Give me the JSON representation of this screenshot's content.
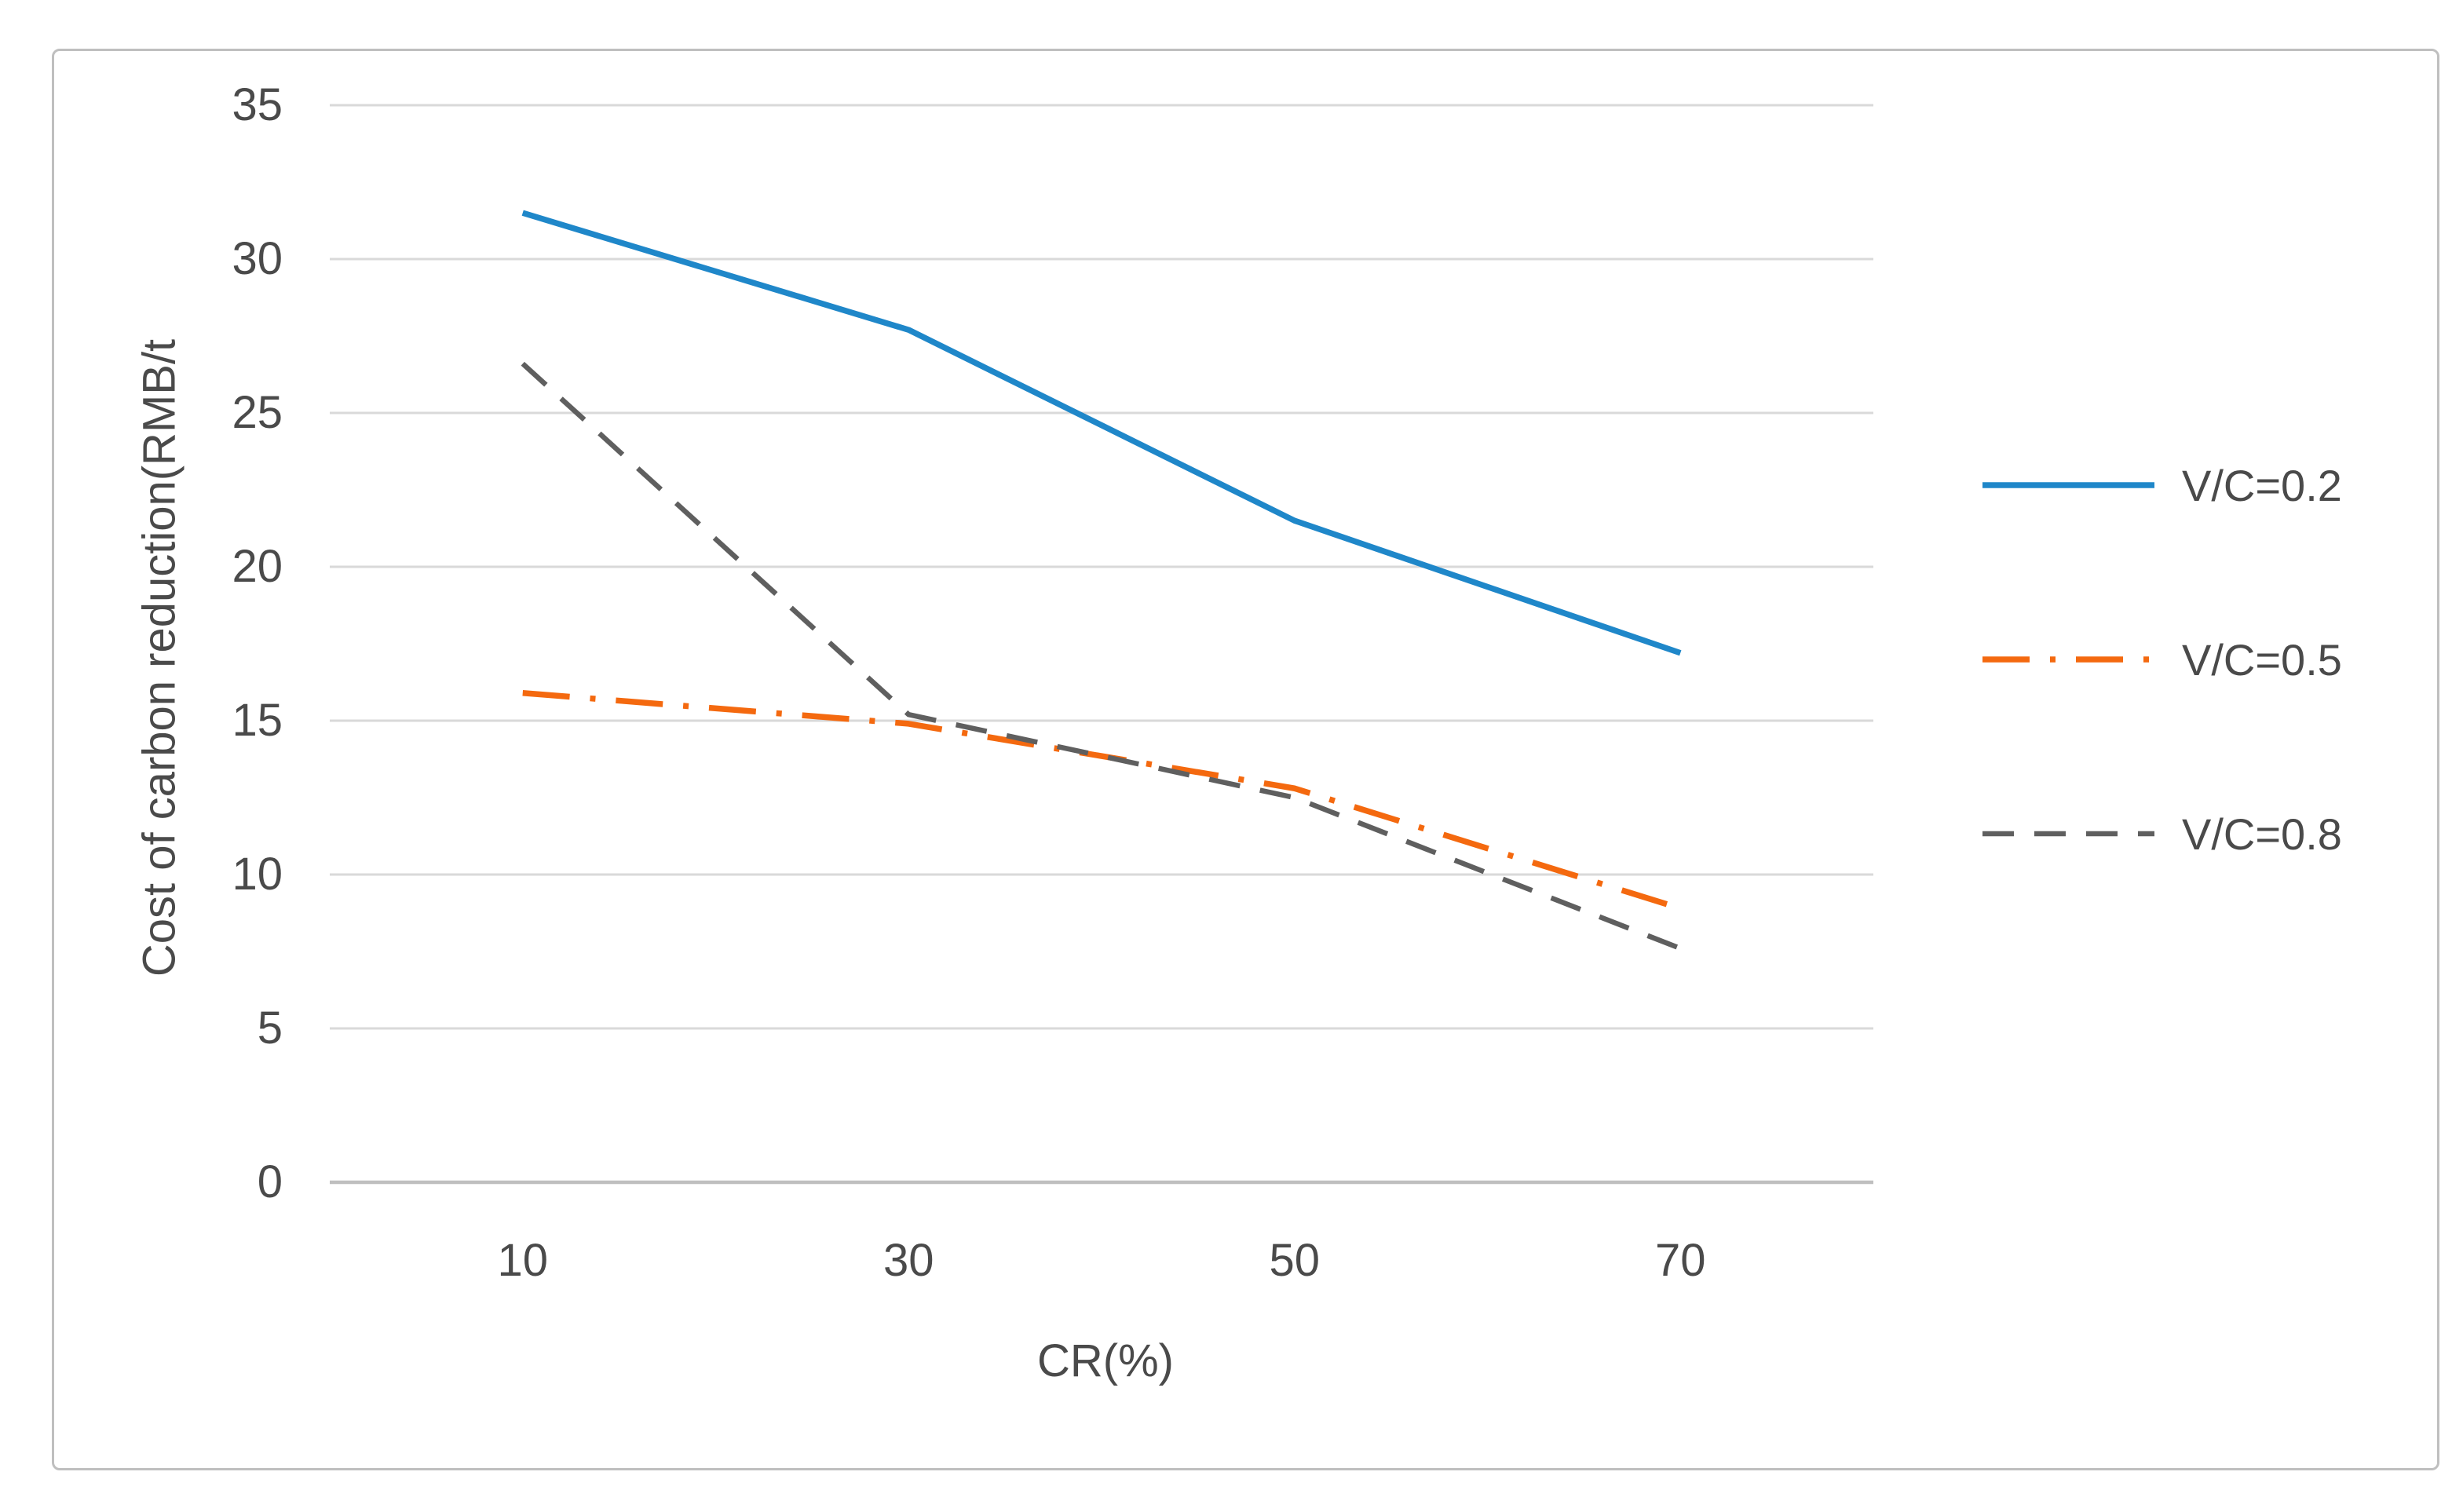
{
  "figure": {
    "background": "#FFFFFF",
    "border_color": "#BFBFBF"
  },
  "chart_data": {
    "type": "line",
    "title": "",
    "xlabel": "CR(%)",
    "ylabel": "Cost of carbon reduction(RMB/t",
    "categories": [
      10,
      30,
      50,
      70
    ],
    "x_tick_labels": [
      "10",
      "30",
      "50",
      "70"
    ],
    "y_ticks": [
      0,
      5,
      10,
      15,
      20,
      25,
      30,
      35
    ],
    "ylim": [
      0,
      35
    ],
    "grid": true,
    "grid_color": "#D9D9D9",
    "axis_color": "#BFBFBF",
    "legend_position": "right",
    "series": [
      {
        "name": "V/C=0.2",
        "style": "solid",
        "color": "#1F87C9",
        "values": [
          31.5,
          27.7,
          21.5,
          17.2
        ]
      },
      {
        "name": "V/C=0.5",
        "style": "dash-dot",
        "color": "#F4690F",
        "values": [
          15.9,
          14.9,
          12.8,
          8.9
        ]
      },
      {
        "name": "V/C=0.8",
        "style": "dashed",
        "color": "#5F5F5F",
        "values": [
          26.6,
          15.2,
          12.5,
          7.6
        ]
      }
    ]
  }
}
